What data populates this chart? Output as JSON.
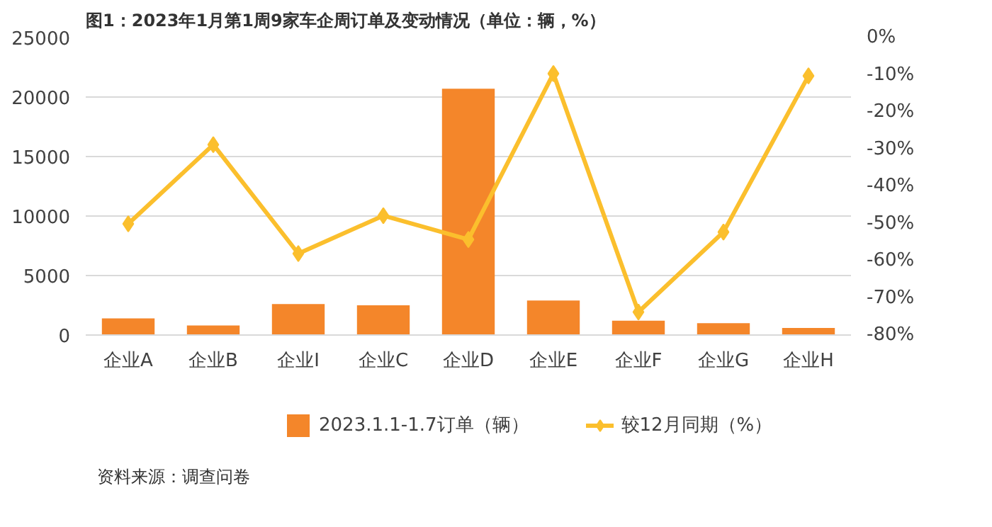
{
  "chart_data": {
    "type": "bar",
    "title": "图1：2023年1月第1周9家车企周订单及变动情况（单位：辆，%）",
    "categories": [
      "企业A",
      "企业B",
      "企业I",
      "企业C",
      "企业D",
      "企业E",
      "企业F",
      "企业G",
      "企业H"
    ],
    "series": [
      {
        "name": "2023.1.1-1.7订单（辆）",
        "color": "#f4862a",
        "values": [
          1400,
          800,
          2600,
          2500,
          20700,
          2900,
          1200,
          1000,
          600
        ]
      },
      {
        "name": "较12月同期（%）",
        "type": "line",
        "axis": "y2",
        "color": "#fbbf2d",
        "marker": "diamond",
        "values": [
          -50.1,
          -28.8,
          -58.1,
          -47.9,
          -54.3,
          -9.7,
          -73.8,
          -52.3,
          -10.3
        ]
      }
    ],
    "ylim": [
      0,
      25000
    ],
    "yticks": [
      0,
      5000,
      10000,
      15000,
      20000,
      25000
    ],
    "y2lim": [
      -80,
      0
    ],
    "y2ticks": [
      {
        "value": 0,
        "label": "0%"
      },
      {
        "value": -10,
        "label": "-10%"
      },
      {
        "value": -20,
        "label": "-20%"
      },
      {
        "value": -30,
        "label": "-30%"
      },
      {
        "value": -40,
        "label": "-40%"
      },
      {
        "value": -50,
        "label": "-50%"
      },
      {
        "value": -60,
        "label": "-60%"
      },
      {
        "value": -70,
        "label": "-70%"
      },
      {
        "value": -80,
        "label": "-80%"
      }
    ],
    "grid": "y",
    "legend": "bottom",
    "annotations": [
      "资料来源：调查问卷"
    ]
  }
}
